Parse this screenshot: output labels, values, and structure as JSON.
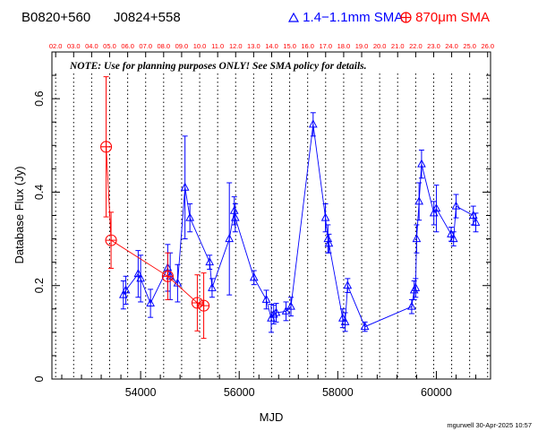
{
  "header": {
    "source_b1950": "B0820+560",
    "source_j2000": "J0824+558"
  },
  "note": "NOTE: Use for planning purposes ONLY! See SMA policy for details.",
  "credit": "mgurwell 30-Apr-2025 10:57",
  "colors": {
    "band1": "#0000ff",
    "band2": "#ff0000",
    "grid": "#000000"
  },
  "chart_data": {
    "type": "scatter",
    "xlabel": "MJD",
    "ylabel": "Database Flux (Jy)",
    "xlim": [
      52200,
      61100
    ],
    "ylim": [
      0,
      0.7
    ],
    "xticks": [
      54000,
      56000,
      58000,
      60000
    ],
    "xtick_labels": [
      "54000",
      "56000",
      "58000",
      "60000"
    ],
    "yticks": [
      0,
      0.2,
      0.4,
      0.6
    ],
    "ytick_labels": [
      "0",
      "0.2",
      "0.4",
      "0.6"
    ],
    "top_axis_labels": [
      "02.0",
      "03.0",
      "04.0",
      "05.0",
      "06.0",
      "07.0",
      "08.0",
      "09.0",
      "10.0",
      "11.0",
      "12.0",
      "13.0",
      "14.0",
      "15.0",
      "16.0",
      "17.0",
      "18.0",
      "19.0",
      "20.0",
      "21.0",
      "22.0",
      "23.0",
      "24.0",
      "25.0",
      "26.0"
    ],
    "top_axis_mjd": [
      52276,
      52641,
      53006,
      53371,
      53737,
      54102,
      54467,
      54832,
      55198,
      55563,
      55928,
      56293,
      56659,
      57024,
      57389,
      57754,
      58120,
      58485,
      58850,
      59215,
      59581,
      59946,
      60311,
      60676,
      61041
    ],
    "grid": "vertical dotted lines at year boundaries",
    "legend_position": "top-right, above plot",
    "series": [
      {
        "name": "1.4−1.1mm SMA",
        "marker": "triangle",
        "color": "#0000ff",
        "connected": true,
        "points": [
          {
            "x": 53650,
            "y": 0.18,
            "err": 0.03
          },
          {
            "x": 53700,
            "y": 0.19,
            "err": 0.03
          },
          {
            "x": 53950,
            "y": 0.225,
            "err": 0.05
          },
          {
            "x": 54000,
            "y": 0.215,
            "err": 0.05
          },
          {
            "x": 54200,
            "y": 0.162,
            "err": 0.03
          },
          {
            "x": 54550,
            "y": 0.238,
            "err": 0.05
          },
          {
            "x": 54600,
            "y": 0.22,
            "err": 0.05
          },
          {
            "x": 54750,
            "y": 0.205,
            "err": 0.04
          },
          {
            "x": 54900,
            "y": 0.41,
            "err": 0.11
          },
          {
            "x": 55000,
            "y": 0.345,
            "err": 0.03
          },
          {
            "x": 55400,
            "y": 0.25,
            "err": 0.015
          },
          {
            "x": 55450,
            "y": 0.195,
            "err": 0.02
          },
          {
            "x": 55800,
            "y": 0.3,
            "err": 0.12
          },
          {
            "x": 55900,
            "y": 0.36,
            "err": 0.03
          },
          {
            "x": 55920,
            "y": 0.345,
            "err": 0.03
          },
          {
            "x": 56300,
            "y": 0.217,
            "err": 0.015
          },
          {
            "x": 56550,
            "y": 0.17,
            "err": 0.02
          },
          {
            "x": 56650,
            "y": 0.13,
            "err": 0.03
          },
          {
            "x": 56700,
            "y": 0.138,
            "err": 0.02
          },
          {
            "x": 56750,
            "y": 0.142,
            "err": 0.02
          },
          {
            "x": 56950,
            "y": 0.145,
            "err": 0.02
          },
          {
            "x": 57050,
            "y": 0.155,
            "err": 0.02
          },
          {
            "x": 57500,
            "y": 0.545,
            "err": 0.025
          },
          {
            "x": 57750,
            "y": 0.345,
            "err": 0.03
          },
          {
            "x": 57800,
            "y": 0.3,
            "err": 0.03
          },
          {
            "x": 57820,
            "y": 0.29,
            "err": 0.02
          },
          {
            "x": 58100,
            "y": 0.13,
            "err": 0.02
          },
          {
            "x": 58150,
            "y": 0.122,
            "err": 0.02
          },
          {
            "x": 58200,
            "y": 0.2,
            "err": 0.015
          },
          {
            "x": 58550,
            "y": 0.112,
            "err": 0.01
          },
          {
            "x": 59500,
            "y": 0.155,
            "err": 0.015
          },
          {
            "x": 59550,
            "y": 0.19,
            "err": 0.02
          },
          {
            "x": 59580,
            "y": 0.195,
            "err": 0.02
          },
          {
            "x": 59600,
            "y": 0.3,
            "err": 0.03
          },
          {
            "x": 59650,
            "y": 0.38,
            "err": 0.04
          },
          {
            "x": 59700,
            "y": 0.46,
            "err": 0.03
          },
          {
            "x": 59950,
            "y": 0.355,
            "err": 0.025
          },
          {
            "x": 60000,
            "y": 0.365,
            "err": 0.05
          },
          {
            "x": 60300,
            "y": 0.31,
            "err": 0.015
          },
          {
            "x": 60350,
            "y": 0.3,
            "err": 0.015
          },
          {
            "x": 60400,
            "y": 0.37,
            "err": 0.025
          },
          {
            "x": 60750,
            "y": 0.35,
            "err": 0.02
          },
          {
            "x": 60800,
            "y": 0.335,
            "err": 0.02
          }
        ]
      },
      {
        "name": "870μm SMA",
        "marker": "circle-plus",
        "color": "#ff0000",
        "connected": true,
        "points": [
          {
            "x": 53300,
            "y": 0.497,
            "err": 0.15
          },
          {
            "x": 53400,
            "y": 0.297,
            "err": 0.06
          },
          {
            "x": 54550,
            "y": 0.22,
            "err": 0.05
          },
          {
            "x": 55150,
            "y": 0.163,
            "err": 0.06
          },
          {
            "x": 55280,
            "y": 0.157,
            "err": 0.07
          }
        ]
      }
    ]
  }
}
